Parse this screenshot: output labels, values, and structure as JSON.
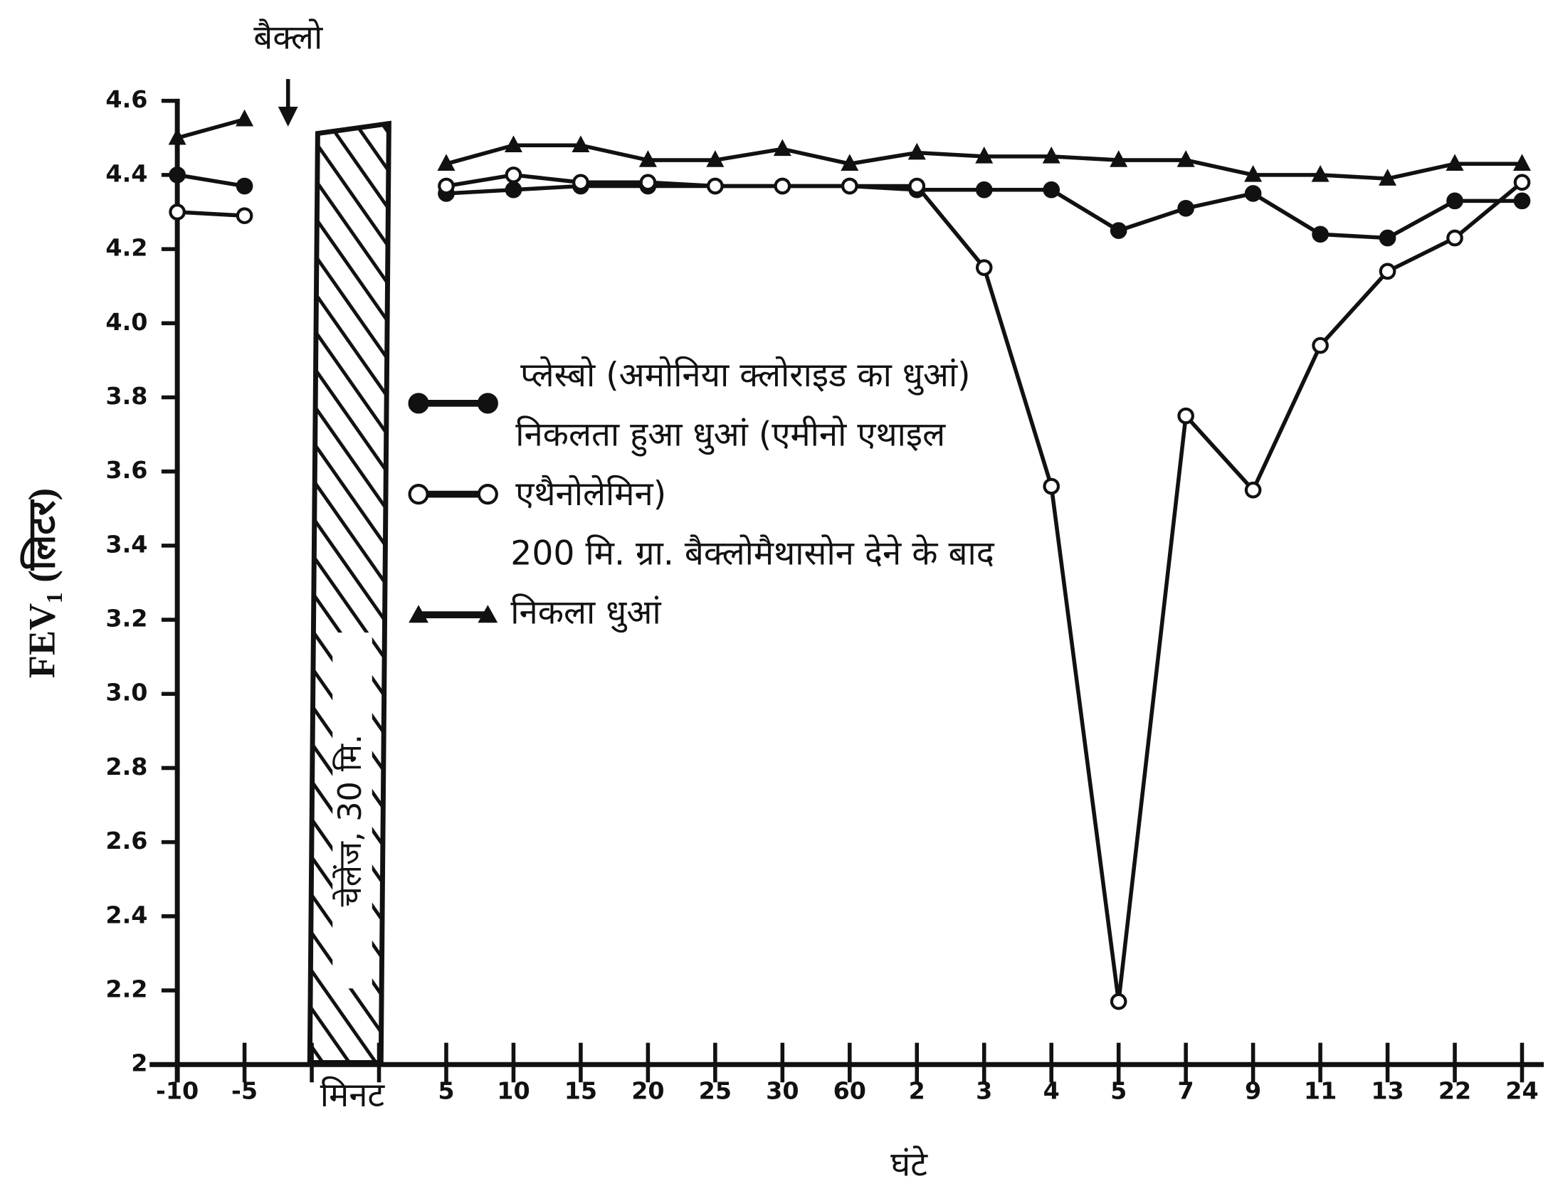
{
  "chart_data": {
    "type": "line",
    "annotation": "बैक्लो",
    "ylabel": "FEV₁ (लिटर)",
    "xlabel": "घंटे",
    "minutes_label": "मिनट",
    "challenge_label": "चेलेंज, 30 मि.",
    "categories": [
      "-10",
      "-5",
      null,
      null,
      "5",
      "10",
      "15",
      "20",
      "25",
      "30",
      "60",
      "2",
      "3",
      "4",
      "5",
      "7",
      "9",
      "11",
      "13",
      "22",
      "24"
    ],
    "ylim": [
      2,
      4.6
    ],
    "yticks": [
      2,
      2.2,
      2.4,
      2.6,
      2.8,
      {
        "value": 3,
        "label": "3.0"
      },
      3.2,
      3.4,
      3.6,
      3.8,
      {
        "value": 4,
        "label": "4.0"
      },
      4.2,
      4.4,
      4.6
    ],
    "series": [
      {
        "name": "प्लेस्बो (अमोनिया क्लोराइड का धुआं)",
        "color": "#111111",
        "marker": "filled-circle",
        "values": [
          4.4,
          4.37,
          null,
          null,
          4.35,
          4.36,
          4.37,
          4.37,
          4.37,
          4.37,
          4.37,
          4.36,
          4.36,
          4.36,
          4.25,
          4.31,
          4.35,
          4.24,
          4.23,
          4.33,
          4.33
        ]
      },
      {
        "name": "निकलता हुआ धुआं (एमीनो एथाइल एथैनोलेमिन)",
        "color": "#111111",
        "marker": "open-circle",
        "values": [
          4.3,
          4.29,
          null,
          null,
          4.37,
          4.4,
          4.38,
          4.38,
          4.37,
          4.37,
          4.37,
          4.37,
          4.15,
          3.56,
          2.17,
          3.75,
          3.55,
          3.94,
          4.14,
          4.23,
          4.38
        ]
      },
      {
        "name": "200 मि. ग्रा. बैक्लोमैथासोन देने के बाद निकला धुआं",
        "color": "#111111",
        "marker": "triangle",
        "values": [
          4.5,
          4.55,
          null,
          null,
          4.43,
          4.48,
          4.48,
          4.44,
          4.44,
          4.47,
          4.43,
          4.46,
          4.45,
          4.45,
          4.44,
          4.44,
          4.4,
          4.4,
          4.39,
          4.43,
          4.43
        ]
      }
    ]
  }
}
